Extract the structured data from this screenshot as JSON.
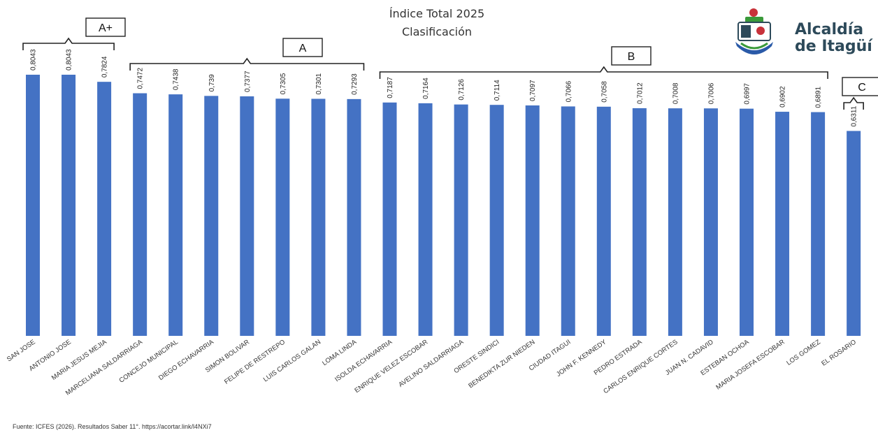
{
  "logo": {
    "line1": "Alcaldía",
    "line2": "de Itagüí",
    "colors": {
      "text": "#2d4a5a",
      "red": "#c8323a",
      "green": "#3a9a3a",
      "blue": "#2a5aa8"
    }
  },
  "source": "Fuente: ICFES (2026). Resultados Saber 11°. https://acortar.link/l4NXi7",
  "chart_data": {
    "type": "bar",
    "title": "Índice Total 2025",
    "subtitle": "Clasificación",
    "xlabel": "",
    "ylabel": "",
    "ylim": [
      0,
      0.8043
    ],
    "grid": false,
    "bar_color": "#4472c4",
    "categories": [
      "SAN JOSE",
      "ANTONIO JOSE",
      "MARIA JESUS MEJIA",
      "MARCELIANA SALDARRIAGA",
      "CONCEJO MUNICIPAL",
      "DIEGO ECHAVARRIA",
      "SIMON BOLIVAR",
      "FELIPE DE RESTREPO",
      "LUIS CARLOS GALAN",
      "LOMA LINDA",
      "ISOLDA ECHAVARRIA",
      "ENRIQUE VELEZ ESCOBAR",
      "AVELINO SALDARRIAGA",
      "ORESTE SINDICI",
      "BENEDIKTA ZUR NIEDEN",
      "CIUDAD ITAGUI",
      "JOHN F. KENNEDY",
      "PEDRO ESTRADA",
      "CARLOS ENRIQUE CORTES",
      "JUAN N. CADAVID",
      "ESTEBAN OCHOA",
      "MARIA JOSEFA ESCOBAR",
      "LOS GOMEZ",
      "EL ROSARIO"
    ],
    "values": [
      0.8043,
      0.8043,
      0.7824,
      0.7472,
      0.7438,
      0.739,
      0.7377,
      0.7305,
      0.7301,
      0.7293,
      0.7187,
      0.7164,
      0.7126,
      0.7114,
      0.7097,
      0.7066,
      0.7058,
      0.7012,
      0.7008,
      0.7006,
      0.6997,
      0.6902,
      0.6891,
      0.6311
    ],
    "value_labels": [
      "0,8043",
      "0,8043",
      "0,7824",
      "0,7472",
      "0,7438",
      "0,739",
      "0,7377",
      "0,7305",
      "0,7301",
      "0,7293",
      "0,7187",
      "0,7164",
      "0,7126",
      "0,7114",
      "0,7097",
      "0,7066",
      "0,7058",
      "0,7012",
      "0,7008",
      "0,7006",
      "0,6997",
      "0,6902",
      "0,6891",
      "0,6311"
    ],
    "groups": [
      {
        "label": "A+",
        "start": 0,
        "end": 2
      },
      {
        "label": "A",
        "start": 3,
        "end": 9
      },
      {
        "label": "B",
        "start": 10,
        "end": 22
      },
      {
        "label": "C",
        "start": 23,
        "end": 23
      }
    ]
  }
}
